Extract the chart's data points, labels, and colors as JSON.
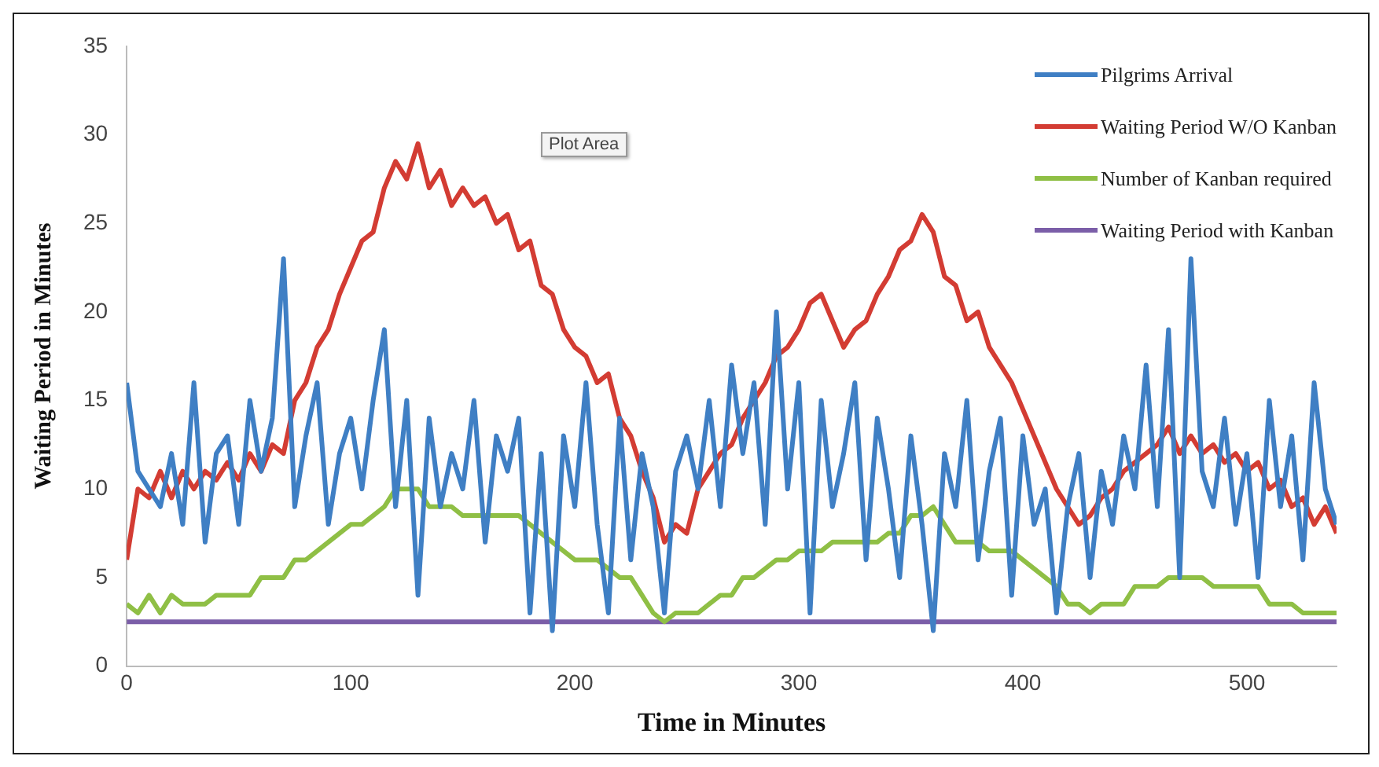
{
  "chart_data": {
    "type": "line",
    "xlabel": "Time in Minutes",
    "ylabel": "Waiting Period in Minutes",
    "annotations": [
      "Plot Area"
    ],
    "x": [
      0,
      5,
      10,
      15,
      20,
      25,
      30,
      35,
      40,
      45,
      50,
      55,
      60,
      65,
      70,
      75,
      80,
      85,
      90,
      95,
      100,
      105,
      110,
      115,
      120,
      125,
      130,
      135,
      140,
      145,
      150,
      155,
      160,
      165,
      170,
      175,
      180,
      185,
      190,
      195,
      200,
      205,
      210,
      215,
      220,
      225,
      230,
      235,
      240,
      245,
      250,
      255,
      260,
      265,
      270,
      275,
      280,
      285,
      290,
      295,
      300,
      305,
      310,
      315,
      320,
      325,
      330,
      335,
      340,
      345,
      350,
      355,
      360,
      365,
      370,
      375,
      380,
      385,
      390,
      395,
      400,
      405,
      410,
      415,
      420,
      425,
      430,
      435,
      440,
      445,
      450,
      455,
      460,
      465,
      470,
      475,
      480,
      485,
      490,
      495,
      500,
      505,
      510,
      515,
      520,
      525,
      530,
      535,
      540
    ],
    "series": [
      {
        "name": "Pilgrims Arrival",
        "color": "#3f7fc4",
        "values": [
          16,
          11,
          10,
          9,
          12,
          8,
          16,
          7,
          12,
          13,
          8,
          15,
          11,
          14,
          23,
          9,
          13,
          16,
          8,
          12,
          14,
          10,
          15,
          19,
          9,
          15,
          4,
          14,
          9,
          12,
          10,
          15,
          7,
          13,
          11,
          14,
          3,
          12,
          2,
          13,
          9,
          16,
          8,
          3,
          14,
          6,
          12,
          9,
          3,
          11,
          13,
          10,
          15,
          9,
          17,
          12,
          16,
          8,
          20,
          10,
          16,
          3,
          15,
          9,
          12,
          16,
          6,
          14,
          10,
          5,
          13,
          8,
          2,
          12,
          9,
          15,
          6,
          11,
          14,
          4,
          13,
          8,
          10,
          3,
          9,
          12,
          5,
          11,
          8,
          13,
          10,
          17,
          9,
          19,
          5,
          23,
          11,
          9,
          14,
          8,
          12,
          5,
          15,
          9,
          13,
          6,
          16,
          10,
          8
        ]
      },
      {
        "name": "Waiting Period W/O Kanban",
        "color": "#d33c33",
        "values": [
          6,
          10,
          9.5,
          11,
          9.5,
          11,
          10,
          11,
          10.5,
          11.5,
          10.5,
          12,
          11,
          12.5,
          12,
          15,
          16,
          18,
          19,
          21,
          22.5,
          24,
          24.5,
          27,
          28.5,
          27.5,
          29.5,
          27,
          28,
          26,
          27,
          26,
          26.5,
          25,
          25.5,
          23.5,
          24,
          21.5,
          21,
          19,
          18,
          17.5,
          16,
          16.5,
          14,
          13,
          11,
          9.5,
          7,
          8,
          7.5,
          10,
          11,
          12,
          12.5,
          14,
          15,
          16,
          17.5,
          18,
          19,
          20.5,
          21,
          19.5,
          18,
          19,
          19.5,
          21,
          22,
          23.5,
          24,
          25.5,
          24.5,
          22,
          21.5,
          19.5,
          20,
          18,
          17,
          16,
          14.5,
          13,
          11.5,
          10,
          9,
          8,
          8.5,
          9.5,
          10,
          11,
          11.5,
          12,
          12.5,
          13.5,
          12,
          13,
          12,
          12.5,
          11.5,
          12,
          11,
          11.5,
          10,
          10.5,
          9,
          9.5,
          8,
          9,
          7.5
        ]
      },
      {
        "name": "Number of Kanban required",
        "color": "#8fbf45",
        "values": [
          3.5,
          3,
          4,
          3,
          4,
          3.5,
          3.5,
          3.5,
          4,
          4,
          4,
          4,
          5,
          5,
          5,
          6,
          6,
          6.5,
          7,
          7.5,
          8,
          8,
          8.5,
          9,
          10,
          10,
          10,
          9,
          9,
          9,
          8.5,
          8.5,
          8.5,
          8.5,
          8.5,
          8.5,
          8,
          7.5,
          7,
          6.5,
          6,
          6,
          6,
          5.5,
          5,
          5,
          4,
          3,
          2.5,
          3,
          3,
          3,
          3.5,
          4,
          4,
          5,
          5,
          5.5,
          6,
          6,
          6.5,
          6.5,
          6.5,
          7,
          7,
          7,
          7,
          7,
          7.5,
          7.5,
          8.5,
          8.5,
          9,
          8,
          7,
          7,
          7,
          6.5,
          6.5,
          6.5,
          6,
          5.5,
          5,
          4.5,
          3.5,
          3.5,
          3,
          3.5,
          3.5,
          3.5,
          4.5,
          4.5,
          4.5,
          5,
          5,
          5,
          5,
          4.5,
          4.5,
          4.5,
          4.5,
          4.5,
          3.5,
          3.5,
          3.5,
          3,
          3,
          3,
          3
        ]
      },
      {
        "name": "Waiting Period with Kanban",
        "color": "#7b5ea8",
        "x": [
          0,
          540
        ],
        "values": [
          2.5,
          2.5
        ]
      }
    ],
    "xlim": [
      0,
      540
    ],
    "xticks": [
      0,
      100,
      200,
      300,
      400,
      500
    ],
    "ylim": [
      0,
      35
    ],
    "yticks": [
      0,
      5,
      10,
      15,
      20,
      25,
      30,
      35
    ],
    "grid": false,
    "legend": "top right"
  }
}
